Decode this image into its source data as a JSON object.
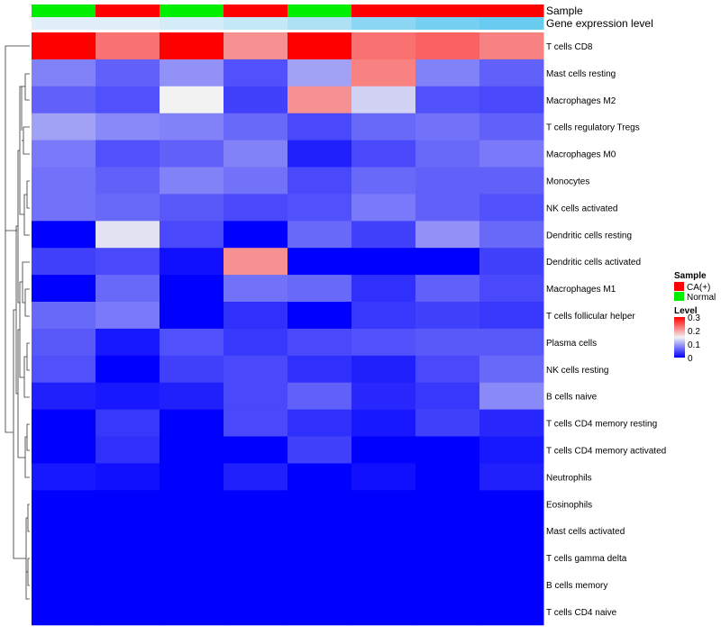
{
  "chart_data": {
    "type": "heatmap",
    "annotation_tracks": [
      "Sample",
      "Gene expression level"
    ],
    "columns": [
      {
        "sample": "Normal",
        "expression_level": 0.95
      },
      {
        "sample": "CA(+)",
        "expression_level": 0.95
      },
      {
        "sample": "Normal",
        "expression_level": 0.85
      },
      {
        "sample": "CA(+)",
        "expression_level": 0.75
      },
      {
        "sample": "Normal",
        "expression_level": 0.6
      },
      {
        "sample": "CA(+)",
        "expression_level": 0.35
      },
      {
        "sample": "CA(+)",
        "expression_level": 0.2
      },
      {
        "sample": "CA(+)",
        "expression_level": 0.1
      }
    ],
    "rows": [
      {
        "label": "T cells CD8",
        "values": [
          0.3,
          0.23,
          0.3,
          0.21,
          0.3,
          0.23,
          0.24,
          0.22
        ]
      },
      {
        "label": "Mast cells resting",
        "values": [
          0.08,
          0.06,
          0.09,
          0.05,
          0.1,
          0.22,
          0.08,
          0.06
        ]
      },
      {
        "label": "Macrophages M2",
        "values": [
          0.06,
          0.05,
          0.15,
          0.04,
          0.21,
          0.13,
          0.05,
          0.045
        ]
      },
      {
        "label": "T cells regulatory  Tregs",
        "values": [
          0.1,
          0.085,
          0.08,
          0.065,
          0.045,
          0.065,
          0.07,
          0.06
        ]
      },
      {
        "label": "Macrophages M0",
        "values": [
          0.075,
          0.05,
          0.06,
          0.08,
          0.02,
          0.045,
          0.065,
          0.075
        ]
      },
      {
        "label": "Monocytes",
        "values": [
          0.07,
          0.06,
          0.08,
          0.07,
          0.045,
          0.065,
          0.06,
          0.06
        ]
      },
      {
        "label": "NK cells activated",
        "values": [
          0.07,
          0.065,
          0.055,
          0.045,
          0.05,
          0.075,
          0.06,
          0.05
        ]
      },
      {
        "label": "Dendritic cells resting",
        "values": [
          0.0,
          0.14,
          0.045,
          0.0,
          0.065,
          0.04,
          0.09,
          0.065
        ]
      },
      {
        "label": "Dendritic cells activated",
        "values": [
          0.04,
          0.045,
          0.01,
          0.21,
          0.0,
          0.0,
          0.0,
          0.04
        ]
      },
      {
        "label": "Macrophages M1",
        "values": [
          0.0,
          0.065,
          0.0,
          0.07,
          0.065,
          0.03,
          0.06,
          0.045
        ]
      },
      {
        "label": "T cells follicular helper",
        "values": [
          0.065,
          0.075,
          0.0,
          0.03,
          0.0,
          0.035,
          0.04,
          0.035
        ]
      },
      {
        "label": "Plasma cells",
        "values": [
          0.055,
          0.015,
          0.05,
          0.035,
          0.045,
          0.05,
          0.055,
          0.055
        ]
      },
      {
        "label": "NK cells resting",
        "values": [
          0.05,
          0.0,
          0.04,
          0.045,
          0.03,
          0.02,
          0.045,
          0.065
        ]
      },
      {
        "label": "B cells naive",
        "values": [
          0.02,
          0.015,
          0.02,
          0.045,
          0.06,
          0.025,
          0.035,
          0.085
        ]
      },
      {
        "label": "T cells CD4 memory resting",
        "values": [
          0.0,
          0.035,
          0.0,
          0.045,
          0.03,
          0.015,
          0.04,
          0.025
        ]
      },
      {
        "label": "T cells CD4 memory activated",
        "values": [
          0.0,
          0.03,
          0.0,
          0.0,
          0.04,
          0.0,
          0.0,
          0.015
        ]
      },
      {
        "label": "Neutrophils",
        "values": [
          0.015,
          0.01,
          0.0,
          0.02,
          0.0,
          0.01,
          0.0,
          0.02
        ]
      },
      {
        "label": "Eosinophils",
        "values": [
          0,
          0,
          0,
          0,
          0,
          0,
          0,
          0
        ]
      },
      {
        "label": "Mast cells activated",
        "values": [
          0,
          0,
          0,
          0,
          0,
          0,
          0,
          0
        ]
      },
      {
        "label": "T cells gamma delta",
        "values": [
          0,
          0,
          0,
          0,
          0,
          0,
          0,
          0
        ]
      },
      {
        "label": "B cells memory",
        "values": [
          0,
          0,
          0,
          0,
          0,
          0,
          0,
          0
        ]
      },
      {
        "label": "T cells CD4 naive",
        "values": [
          0,
          0,
          0,
          0,
          0,
          0,
          0,
          0
        ]
      }
    ],
    "legend_sample": {
      "title": "Sample",
      "entries": [
        {
          "label": "CA(+)",
          "color": "#ff0000"
        },
        {
          "label": "Normal",
          "color": "#00ee00"
        }
      ]
    },
    "legend_level": {
      "title": "Level",
      "ticks": [
        "0.3",
        "0.2",
        "0.1",
        "0"
      ],
      "tick_values": [
        0.3,
        0.2,
        0.1,
        0
      ],
      "range": [
        0,
        0.3
      ],
      "colors": {
        "low": "#0000ff",
        "mid": "#f2f2f2",
        "high": "#ff0000"
      }
    },
    "expression_colors": {
      "low": "#5ac8f0",
      "high": "#e8f2f8"
    }
  }
}
